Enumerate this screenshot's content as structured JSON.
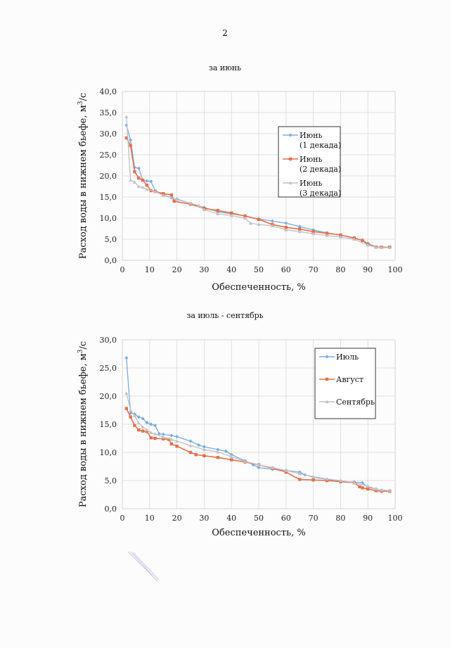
{
  "page_number": "2",
  "colors": {
    "series1": "#7aaee0",
    "series2": "#e8704a",
    "series3": "#c2c2c8",
    "grid": "#d9d9d9"
  },
  "chart_data": [
    {
      "type": "line",
      "title": "за июнь",
      "xlabel": "Обеспеченность, %",
      "ylabel_main": "Расход воды в нижнем бьефе, м",
      "ylabel_sup": "3",
      "ylabel_tail": "/с",
      "xlim": [
        0,
        100
      ],
      "ylim": [
        0,
        40
      ],
      "grid": true,
      "legend_position": "top-right",
      "x_ticks": [
        "0",
        "10",
        "20",
        "30",
        "40",
        "50",
        "60",
        "70",
        "80",
        "90",
        "100"
      ],
      "y_ticks": [
        "0,0",
        "5,0",
        "10,0",
        "15,0",
        "20,0",
        "25,0",
        "30,0",
        "35,0",
        "40,0"
      ],
      "series": [
        {
          "name": "Июнь (1 декада)",
          "legend_lines": [
            "Июнь",
            "(1 декада)"
          ],
          "marker": "diamond",
          "x": [
            1.5,
            3,
            4.5,
            6,
            7.5,
            9,
            10.5,
            12,
            15,
            18,
            20,
            25,
            30,
            35,
            40,
            45,
            50,
            55,
            60,
            65,
            70,
            75,
            80,
            85,
            88,
            90,
            93,
            95,
            98
          ],
          "y": [
            32,
            28.5,
            22,
            21.8,
            19,
            18.8,
            18.7,
            16.5,
            15.5,
            14.8,
            14.5,
            13.5,
            12.5,
            11.5,
            11,
            10.5,
            9.8,
            9.3,
            8.8,
            8.0,
            7.2,
            6.5,
            6.0,
            5.2,
            4.8,
            4.0,
            3.2,
            3.1,
            3.1
          ]
        },
        {
          "name": "Июнь (2 декада)",
          "legend_lines": [
            "Июнь",
            "(2 декада)"
          ],
          "marker": "square",
          "x": [
            1.5,
            3,
            4.5,
            6,
            7.5,
            9,
            10.5,
            12,
            15,
            18,
            19,
            25,
            30,
            35,
            40,
            45,
            50,
            55,
            60,
            65,
            70,
            75,
            80,
            85,
            88,
            90,
            93,
            95,
            98
          ],
          "y": [
            29,
            27.2,
            21,
            19.5,
            19,
            17.8,
            16.5,
            16.3,
            15.8,
            15.5,
            14,
            13.3,
            12.3,
            11.8,
            11.2,
            10.5,
            9.7,
            8.5,
            7.8,
            7.4,
            6.8,
            6.4,
            6.0,
            5.3,
            4.7,
            3.8,
            3.1,
            3.1,
            3.1
          ]
        },
        {
          "name": "Июнь (3 декада)",
          "legend_lines": [
            "Июнь",
            "(3 декада)"
          ],
          "marker": "triangle",
          "x": [
            1.5,
            3,
            4.5,
            6,
            7.5,
            9,
            12,
            15,
            20,
            25,
            28,
            30,
            35,
            40,
            45,
            47,
            50,
            55,
            60,
            65,
            70,
            75,
            80,
            85,
            90,
            93,
            95,
            98
          ],
          "y": [
            34,
            19,
            18.5,
            17.5,
            17.3,
            16.8,
            16.3,
            15.4,
            14.4,
            13.5,
            13.0,
            12.0,
            11.0,
            10.6,
            10.0,
            8.8,
            8.5,
            8.2,
            7.2,
            6.8,
            6.3,
            5.9,
            5.5,
            5.0,
            3.6,
            3.1,
            3.0,
            3.0
          ]
        }
      ]
    },
    {
      "type": "line",
      "title": "за июль - сентябрь",
      "xlabel": "Обеспеченность, %",
      "ylabel_main": "Расход воды в нижнем бьефе, м",
      "ylabel_sup": "3",
      "ylabel_tail": "/с",
      "xlim": [
        0,
        100
      ],
      "ylim": [
        0,
        30
      ],
      "grid": true,
      "legend_position": "top-right",
      "x_ticks": [
        "0",
        "10",
        "20",
        "30",
        "40",
        "50",
        "60",
        "70",
        "80",
        "90",
        "100"
      ],
      "y_ticks": [
        "0,0",
        "5,0",
        "10,0",
        "15,0",
        "20,0",
        "25,0",
        "30,0"
      ],
      "series": [
        {
          "name": "Июль",
          "legend_lines": [
            "Июль"
          ],
          "marker": "diamond",
          "x": [
            1.5,
            3,
            4.5,
            6,
            7.5,
            9,
            10.5,
            12,
            13.5,
            15,
            18,
            20,
            25,
            28,
            30,
            35,
            38,
            40,
            45,
            48,
            50,
            55,
            60,
            65,
            67,
            70,
            75,
            80,
            85,
            88,
            90,
            93,
            95,
            98
          ],
          "y": [
            26.8,
            17,
            16.8,
            16.3,
            16,
            15.3,
            15,
            14.8,
            13.3,
            13.2,
            13.0,
            12.8,
            12.0,
            11.3,
            11.0,
            10.5,
            10.2,
            9.6,
            8.5,
            7.8,
            7.3,
            7.0,
            6.8,
            6.5,
            6.0,
            5.6,
            5.2,
            4.9,
            4.7,
            4.6,
            3.8,
            3.5,
            3.3,
            3.2
          ]
        },
        {
          "name": "Август",
          "legend_lines": [
            "Август"
          ],
          "marker": "square",
          "x": [
            1.5,
            3,
            4.5,
            6,
            7.5,
            9,
            10.5,
            12,
            15,
            17,
            18,
            20,
            25,
            27,
            30,
            35,
            40,
            45,
            50,
            55,
            60,
            65,
            70,
            75,
            80,
            85,
            87,
            88,
            90,
            93,
            95,
            98
          ],
          "y": [
            17.8,
            16.3,
            14.8,
            14.0,
            13.8,
            13.7,
            12.6,
            12.5,
            12.4,
            12.3,
            11.5,
            11.1,
            10.0,
            9.6,
            9.4,
            9.1,
            8.7,
            8.3,
            7.8,
            7.2,
            6.5,
            5.2,
            5.1,
            5.0,
            4.8,
            4.6,
            3.9,
            3.7,
            3.5,
            3.2,
            3.1,
            3.1
          ]
        },
        {
          "name": "Сентябрь",
          "legend_lines": [
            "Сентябрь"
          ],
          "marker": "triangle",
          "x": [
            1.5,
            3,
            4.5,
            6,
            7.5,
            9,
            10.5,
            12,
            15,
            18,
            20,
            25,
            30,
            35,
            40,
            45,
            50,
            55,
            60,
            65,
            70,
            75,
            80,
            85,
            90,
            93,
            95,
            98
          ],
          "y": [
            20.5,
            17.5,
            16.5,
            15.2,
            14.5,
            14.0,
            13.5,
            13.3,
            12.7,
            12.3,
            12.0,
            11.2,
            10.5,
            10.1,
            9.2,
            8.4,
            7.8,
            7.3,
            6.8,
            6.2,
            5.7,
            5.3,
            5.0,
            4.6,
            4.0,
            3.5,
            3.3,
            3.2
          ]
        }
      ]
    }
  ]
}
